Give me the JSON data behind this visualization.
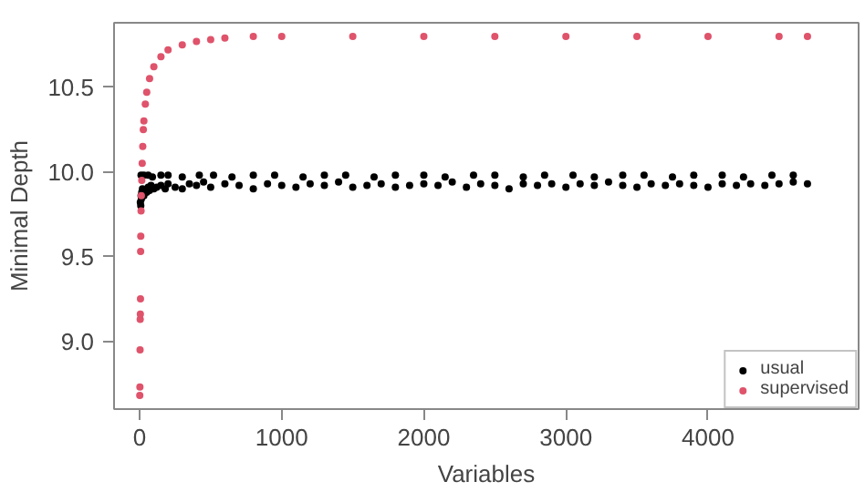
{
  "chart_data": {
    "type": "scatter",
    "xlabel": "Variables",
    "ylabel": "Minimal Depth",
    "xlim": [
      -180,
      5060
    ],
    "ylim": [
      8.6,
      10.88
    ],
    "xticks": [
      0,
      1000,
      2000,
      3000,
      4000
    ],
    "yticks": [
      {
        "value": 9.0,
        "label": "9.0"
      },
      {
        "value": 9.5,
        "label": "9.5"
      },
      {
        "value": 10.0,
        "label": "10.0"
      },
      {
        "value": 10.5,
        "label": "10.5"
      }
    ],
    "grid": false,
    "legend": "bottom right",
    "marker": "circle",
    "series": [
      {
        "name": "usual",
        "color": "#000000",
        "x": [
          5,
          8,
          10,
          12,
          15,
          20,
          30,
          50,
          60,
          70,
          80,
          100,
          120,
          150,
          180,
          200,
          250,
          300,
          350,
          400,
          450,
          500,
          600,
          700,
          800,
          900,
          1000,
          1100,
          1200,
          1300,
          1400,
          1500,
          1600,
          1700,
          1800,
          1900,
          2000,
          2100,
          2200,
          2300,
          2400,
          2500,
          2600,
          2700,
          2800,
          2900,
          3000,
          3100,
          3200,
          3300,
          3400,
          3500,
          3600,
          3700,
          3800,
          3900,
          4000,
          4100,
          4200,
          4300,
          4400,
          4500,
          4600,
          4700,
          10,
          30,
          60,
          90,
          150,
          200,
          300,
          420,
          520,
          650,
          800,
          950,
          1150,
          1300,
          1450,
          1650,
          1800,
          2000,
          2150,
          2350,
          2500,
          2700,
          2850,
          3050,
          3200,
          3400,
          3550,
          3750,
          3900,
          4100,
          4250,
          4450,
          4600
        ],
        "values": [
          9.82,
          9.8,
          9.86,
          9.84,
          9.88,
          9.9,
          9.86,
          9.88,
          9.91,
          9.89,
          9.92,
          9.9,
          9.91,
          9.92,
          9.9,
          9.93,
          9.91,
          9.9,
          9.93,
          9.92,
          9.94,
          9.91,
          9.93,
          9.92,
          9.9,
          9.93,
          9.92,
          9.91,
          9.93,
          9.92,
          9.94,
          9.91,
          9.92,
          9.93,
          9.91,
          9.92,
          9.93,
          9.92,
          9.94,
          9.91,
          9.93,
          9.92,
          9.9,
          9.93,
          9.92,
          9.93,
          9.91,
          9.93,
          9.92,
          9.94,
          9.92,
          9.91,
          9.93,
          9.92,
          9.93,
          9.92,
          9.91,
          9.93,
          9.92,
          9.93,
          9.92,
          9.93,
          9.94,
          9.93,
          9.98,
          9.98,
          9.98,
          9.97,
          9.98,
          9.98,
          9.97,
          9.98,
          9.98,
          9.97,
          9.98,
          9.98,
          9.97,
          9.98,
          9.98,
          9.97,
          9.98,
          9.98,
          9.97,
          9.98,
          9.98,
          9.97,
          9.98,
          9.98,
          9.97,
          9.98,
          9.98,
          9.97,
          9.98,
          9.98,
          9.97,
          9.98,
          9.98
        ]
      },
      {
        "name": "supervised",
        "color": "#df536b",
        "x": [
          1,
          2,
          3,
          4,
          5,
          6,
          7,
          8,
          10,
          12,
          15,
          18,
          22,
          26,
          30,
          40,
          50,
          70,
          100,
          150,
          200,
          300,
          400,
          500,
          600,
          800,
          1000,
          1500,
          2000,
          2500,
          3000,
          3500,
          4000,
          4500,
          4700
        ],
        "values": [
          8.68,
          8.73,
          8.95,
          9.13,
          9.16,
          9.25,
          9.53,
          9.62,
          9.77,
          9.86,
          9.95,
          10.05,
          10.15,
          10.25,
          10.3,
          10.4,
          10.47,
          10.55,
          10.62,
          10.68,
          10.72,
          10.75,
          10.77,
          10.78,
          10.79,
          10.8,
          10.8,
          10.8,
          10.8,
          10.8,
          10.8,
          10.8,
          10.8,
          10.8,
          10.8
        ]
      }
    ]
  }
}
